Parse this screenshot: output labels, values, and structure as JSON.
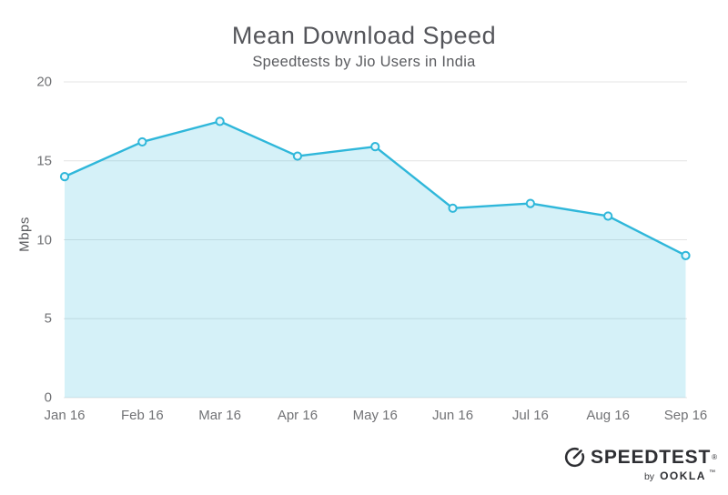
{
  "chart_data": {
    "type": "area",
    "title": "Mean Download Speed",
    "subtitle": "Speedtests by Jio Users in India",
    "xlabel": "",
    "ylabel": "Mbps",
    "categories": [
      "Jan 16",
      "Feb 16",
      "Mar 16",
      "Apr 16",
      "May 16",
      "Jun 16",
      "Jul 16",
      "Aug 16",
      "Sep 16"
    ],
    "values": [
      14.0,
      16.2,
      17.5,
      15.3,
      15.9,
      12.0,
      12.3,
      11.5,
      9.0
    ],
    "ylim": [
      0,
      20
    ],
    "yticks": [
      0,
      5,
      10,
      15,
      20
    ],
    "grid": true,
    "legend": false,
    "line_color": "#2fb7da",
    "fill_color": "rgba(47,183,218,0.20)",
    "marker_fill": "#e9f7fb",
    "gridline_color": "#e4e4e4",
    "marker": "circle"
  },
  "footer": {
    "brand": "SPEEDTEST",
    "registered": "®",
    "byline_prefix": "by",
    "byline_brand": "OOKLA",
    "trademark": "™"
  }
}
